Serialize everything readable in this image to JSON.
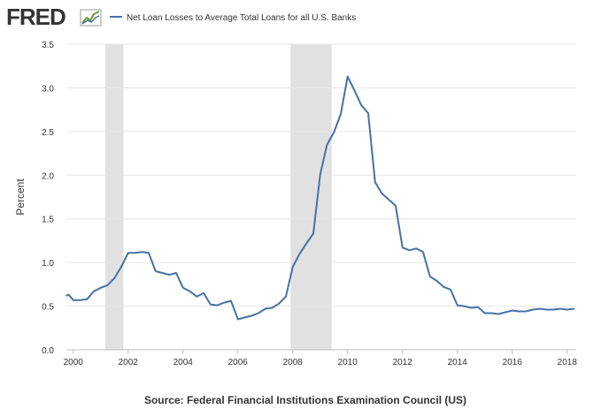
{
  "header": {
    "logo_text": "FRED",
    "legend_label": "Net Loan Losses to Average Total Loans for all U.S. Banks"
  },
  "source_text": "Source: Federal Financial Institutions Examination Council (US)",
  "colors": {
    "line": "#4572a7",
    "recession": "#e1e1e1",
    "grid": "#e6e6e6",
    "axis_text": "#333333",
    "logo_dark": "#333333"
  },
  "chart_data": {
    "type": "line",
    "title": "",
    "xlabel": "",
    "ylabel": "Percent",
    "xlim": [
      1999.75,
      2018.33
    ],
    "ylim": [
      0,
      3.5
    ],
    "x_ticks": [
      2000,
      2002,
      2004,
      2006,
      2008,
      2010,
      2012,
      2014,
      2016,
      2018
    ],
    "x_tick_labels": [
      "2000",
      "2002",
      "2004",
      "2006",
      "2008",
      "2010",
      "2012",
      "2014",
      "2016",
      "2018"
    ],
    "y_ticks": [
      0,
      0.5,
      1.0,
      1.5,
      2.0,
      2.5,
      3.0,
      3.5
    ],
    "y_tick_labels": [
      "0.0",
      "0.5",
      "1.0",
      "1.5",
      "2.0",
      "2.5",
      "3.0",
      "3.5"
    ],
    "grid": true,
    "recessions": [
      [
        2001.17,
        2001.83
      ],
      [
        2007.92,
        2009.42
      ]
    ],
    "series": [
      {
        "name": "Net Loan Losses to Average Total Loans for all U.S. Banks",
        "x": [
          1999.75,
          1999.83,
          2000.0,
          2000.25,
          2000.5,
          2000.75,
          2001.0,
          2001.25,
          2001.5,
          2001.75,
          2002.0,
          2002.25,
          2002.5,
          2002.75,
          2003.0,
          2003.25,
          2003.5,
          2003.75,
          2004.0,
          2004.25,
          2004.5,
          2004.75,
          2005.0,
          2005.25,
          2005.5,
          2005.75,
          2006.0,
          2006.25,
          2006.5,
          2006.75,
          2007.0,
          2007.25,
          2007.5,
          2007.75,
          2008.0,
          2008.25,
          2008.5,
          2008.75,
          2009.0,
          2009.25,
          2009.5,
          2009.75,
          2010.0,
          2010.25,
          2010.5,
          2010.75,
          2011.0,
          2011.25,
          2011.5,
          2011.75,
          2012.0,
          2012.25,
          2012.5,
          2012.75,
          2013.0,
          2013.25,
          2013.5,
          2013.75,
          2014.0,
          2014.25,
          2014.5,
          2014.75,
          2015.0,
          2015.25,
          2015.5,
          2015.75,
          2016.0,
          2016.25,
          2016.5,
          2016.75,
          2017.0,
          2017.25,
          2017.5,
          2017.75,
          2018.0,
          2018.25
        ],
        "values": [
          0.62,
          0.63,
          0.57,
          0.57,
          0.58,
          0.67,
          0.71,
          0.74,
          0.82,
          0.95,
          1.11,
          1.11,
          1.12,
          1.11,
          0.9,
          0.88,
          0.86,
          0.88,
          0.71,
          0.67,
          0.61,
          0.65,
          0.52,
          0.51,
          0.54,
          0.56,
          0.35,
          0.37,
          0.39,
          0.42,
          0.47,
          0.48,
          0.53,
          0.61,
          0.95,
          1.1,
          1.22,
          1.33,
          2.01,
          2.35,
          2.49,
          2.7,
          3.13,
          2.97,
          2.8,
          2.71,
          1.92,
          1.79,
          1.72,
          1.65,
          1.17,
          1.14,
          1.16,
          1.12,
          0.84,
          0.79,
          0.72,
          0.69,
          0.51,
          0.5,
          0.48,
          0.49,
          0.42,
          0.42,
          0.41,
          0.43,
          0.45,
          0.44,
          0.44,
          0.46,
          0.47,
          0.46,
          0.46,
          0.47,
          0.46,
          0.47
        ]
      }
    ]
  }
}
